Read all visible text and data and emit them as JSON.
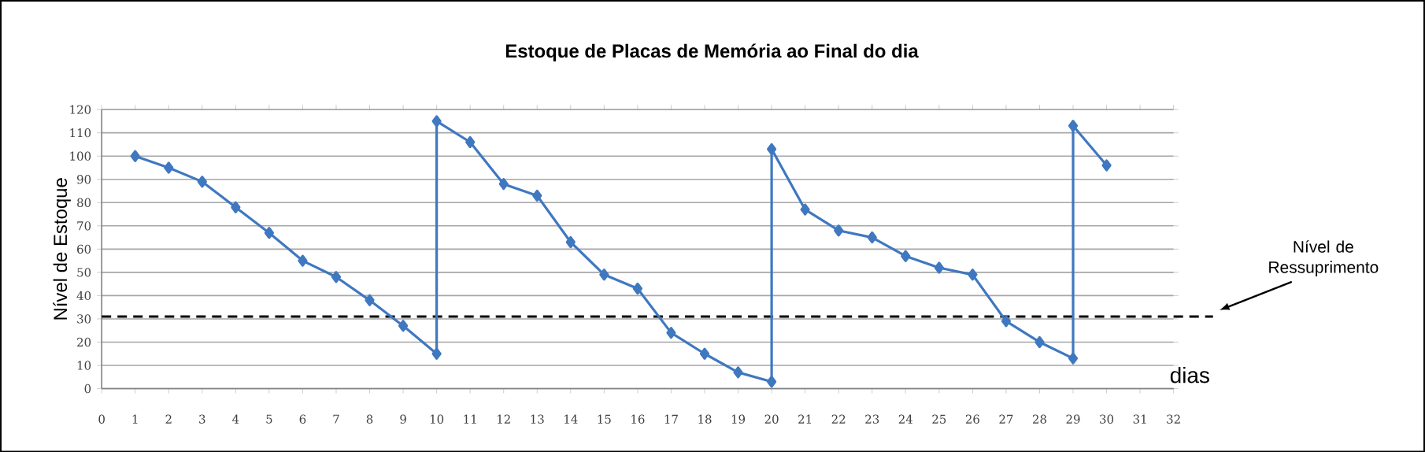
{
  "chart_data": {
    "type": "line",
    "title": "Estoque de Placas de Memória ao Final do dia",
    "xlabel": "dias",
    "ylabel": "Nível de Estoque",
    "xlim": [
      0,
      32
    ],
    "xticks": [
      0,
      1,
      2,
      3,
      4,
      5,
      6,
      7,
      8,
      9,
      10,
      11,
      12,
      13,
      14,
      15,
      16,
      17,
      18,
      19,
      20,
      21,
      22,
      23,
      24,
      25,
      26,
      27,
      28,
      29,
      30,
      31,
      32
    ],
    "ylim": [
      0,
      120
    ],
    "yticks": [
      0,
      10,
      20,
      30,
      40,
      50,
      60,
      70,
      80,
      90,
      100,
      110,
      120
    ],
    "grid": "y",
    "marker": "diamond",
    "line_style": "solid",
    "series": [
      {
        "color": "#3f78c0",
        "x": [
          1,
          2,
          3,
          4,
          5,
          6,
          7,
          8,
          9,
          10,
          10,
          11,
          12,
          13,
          14,
          15,
          16,
          17,
          18,
          19,
          20,
          20,
          21,
          22,
          23,
          24,
          25,
          26,
          27,
          28,
          29,
          29,
          30
        ],
        "values": [
          100,
          95,
          89,
          78,
          67,
          55,
          48,
          38,
          27,
          15,
          115,
          106,
          88,
          83,
          63,
          49,
          43,
          24,
          15,
          7,
          3,
          103,
          77,
          68,
          65,
          57,
          52,
          49,
          29,
          20,
          13,
          113,
          96
        ]
      }
    ],
    "ref_lines": [
      {
        "axis": "y",
        "value": 31,
        "label": "Nível de Ressuprimento",
        "color": "#000000",
        "line_style": "dashed"
      }
    ]
  }
}
